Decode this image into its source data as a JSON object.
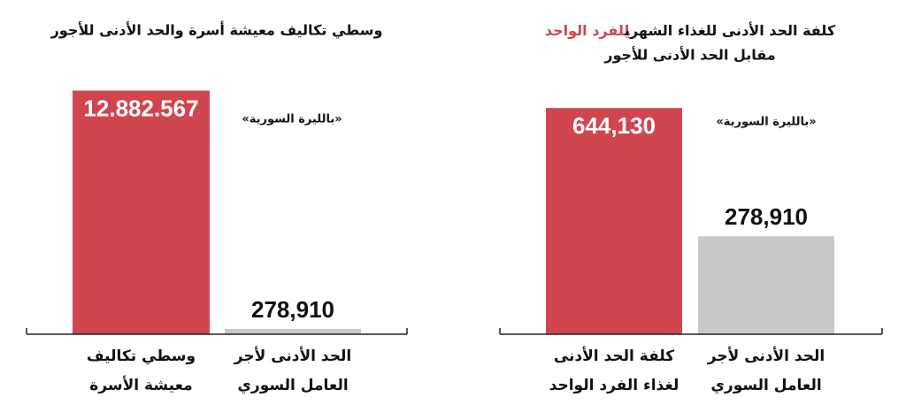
{
  "chart_data": [
    {
      "type": "bar",
      "title": "وسطي تكاليف معيشة أسرة والحد الأدنى للأجور",
      "unit_note": "«بالليرة السورية»",
      "categories": [
        [
          "وسطي تكاليف",
          "معيشة الأسرة"
        ],
        [
          "الحد الأدنى لأجر",
          "العامل السوري"
        ]
      ],
      "values": [
        12882567,
        278910
      ],
      "value_labels": [
        "12.882.567",
        "278,910"
      ],
      "colors": [
        "#d0464f",
        "#c9c9c9"
      ],
      "ylim": [
        0,
        13000000
      ]
    },
    {
      "type": "bar",
      "title": "كلفة الحد الأدنى للغذاء الشهري",
      "title_highlight": "للفرد الواحد",
      "title_line2": "مقابل الحد الأدنى للأجور",
      "unit_note": "«بالليرة السورية»",
      "categories": [
        [
          "كلفة الحد الأدنى",
          "لغذاء الفرد الواحد"
        ],
        [
          "الحد الأدنى لأجر",
          "العامل السوري"
        ]
      ],
      "values": [
        644130,
        278910
      ],
      "value_labels": [
        "644,130",
        "278,910"
      ],
      "colors": [
        "#d0464f",
        "#c9c9c9"
      ],
      "ylim": [
        0,
        700000
      ]
    }
  ]
}
